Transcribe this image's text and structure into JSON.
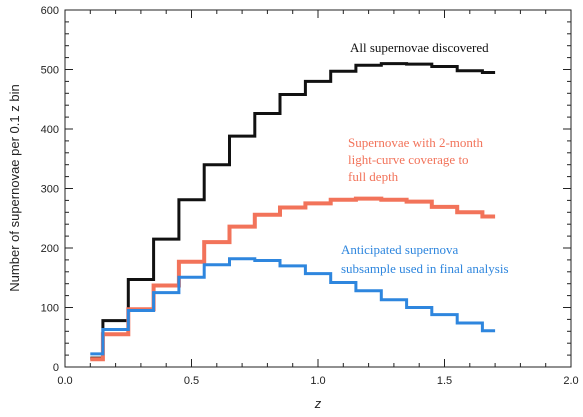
{
  "chart_data": {
    "type": "line",
    "step": true,
    "xlabel": "z",
    "ylabel": "Number of supernovae per 0.1 z bin",
    "xlim": [
      0.0,
      2.0
    ],
    "ylim": [
      0,
      600
    ],
    "x_ticks": [
      "0.0",
      "0.5",
      "1.0",
      "1.5",
      "2.0"
    ],
    "y_ticks": [
      "0",
      "100",
      "200",
      "300",
      "400",
      "500",
      "600"
    ],
    "grid": false,
    "x_bin_edges": [
      0.1,
      0.15,
      0.25,
      0.35,
      0.45,
      0.55,
      0.65,
      0.75,
      0.85,
      0.95,
      1.05,
      1.15,
      1.25,
      1.35,
      1.45,
      1.55,
      1.65,
      1.7
    ],
    "series": [
      {
        "name": "All supernovae discovered",
        "color": "#111111",
        "values": [
          15,
          78,
          147,
          215,
          281,
          340,
          388,
          426,
          458,
          480,
          497,
          507,
          510,
          509,
          505,
          498,
          495
        ]
      },
      {
        "name": "Supernovae with 2-month light-curve coverage to full depth",
        "color": "#f2735a",
        "values": [
          13,
          55,
          97,
          137,
          177,
          210,
          236,
          256,
          268,
          275,
          281,
          283,
          281,
          278,
          269,
          260,
          253
        ]
      },
      {
        "name": "Anticipated supernova subsample used in final analysis",
        "color": "#2e86de",
        "values": [
          22,
          63,
          95,
          125,
          151,
          172,
          182,
          179,
          170,
          157,
          142,
          128,
          113,
          100,
          88,
          74,
          61
        ]
      }
    ],
    "annotations": [
      {
        "lines": [
          "All supernovae discovered"
        ],
        "color": "#111111"
      },
      {
        "lines": [
          "Supernovae with 2-month",
          "light-curve coverage to",
          "full depth"
        ],
        "color": "#f2735a"
      },
      {
        "lines": [
          "Anticipated supernova",
          "subsample used in final analysis"
        ],
        "color": "#2e86de"
      }
    ]
  }
}
